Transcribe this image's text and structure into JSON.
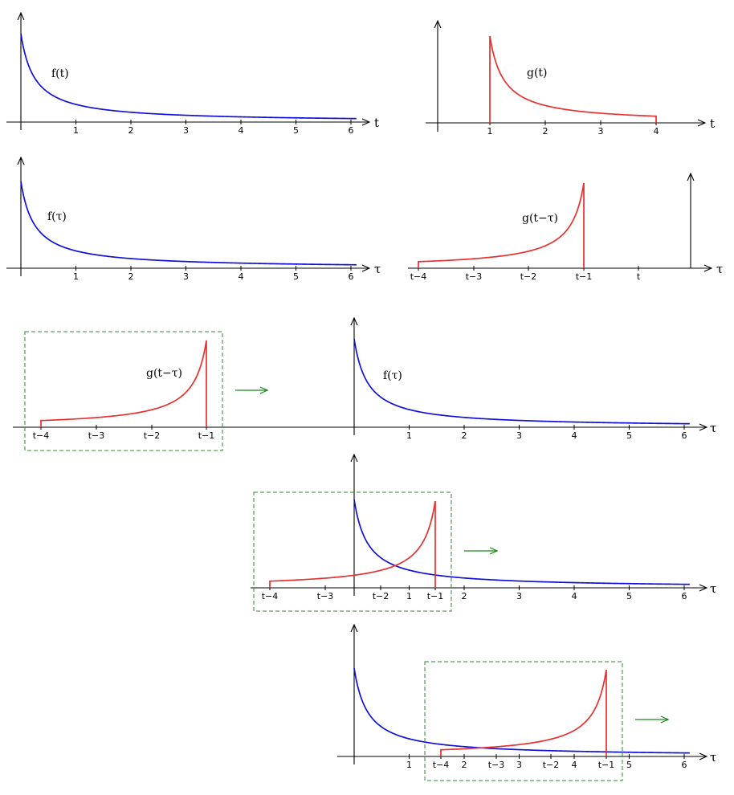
{
  "colors": {
    "f_curve": "#1010dd",
    "g_curve": "#e83030",
    "window_box": "#2b8a2b",
    "arrow": "#1a8a1a",
    "axis": "#000000"
  },
  "panels": [
    {
      "id": "panel-f-t",
      "curve": "f",
      "function_label": "f(t)",
      "axis_label": "t",
      "tick_labels": [
        "1",
        "2",
        "3",
        "4",
        "5",
        "6"
      ]
    },
    {
      "id": "panel-g-t",
      "curve": "g",
      "function_label": "g(t)",
      "axis_label": "t",
      "tick_labels": [
        "1",
        "2",
        "3",
        "4"
      ]
    },
    {
      "id": "panel-f-tau",
      "curve": "f",
      "function_label": "f(τ)",
      "axis_label": "τ",
      "tick_labels": [
        "1",
        "2",
        "3",
        "4",
        "5",
        "6"
      ]
    },
    {
      "id": "panel-g-flipped",
      "curve": "g-flipped",
      "function_label": "g(t−τ)",
      "axis_label": "τ",
      "tick_labels": [
        "t−4",
        "t−3",
        "t−2",
        "t−1",
        "t"
      ]
    },
    {
      "id": "panel-slide-1",
      "curve": "f",
      "function_label": "f(τ)",
      "window_function_label": "g(t−τ)",
      "axis_label": "τ",
      "tick_labels": [
        "1",
        "2",
        "3",
        "4",
        "5",
        "6"
      ],
      "window_tick_labels": [
        "t−4",
        "t−3",
        "t−2",
        "t−1"
      ]
    },
    {
      "id": "panel-slide-2",
      "curve": "f",
      "axis_label": "τ",
      "tick_labels": [
        "1",
        "2",
        "3",
        "4",
        "5",
        "6"
      ],
      "window_tick_labels": [
        "t−4",
        "t−3",
        "t−2",
        "t−1"
      ]
    },
    {
      "id": "panel-slide-3",
      "curve": "f",
      "axis_label": "τ",
      "tick_labels": [
        "1",
        "2",
        "3",
        "4",
        "5",
        "6"
      ],
      "window_tick_labels": [
        "t−4",
        "t−3",
        "t−2",
        "t−1"
      ]
    }
  ]
}
